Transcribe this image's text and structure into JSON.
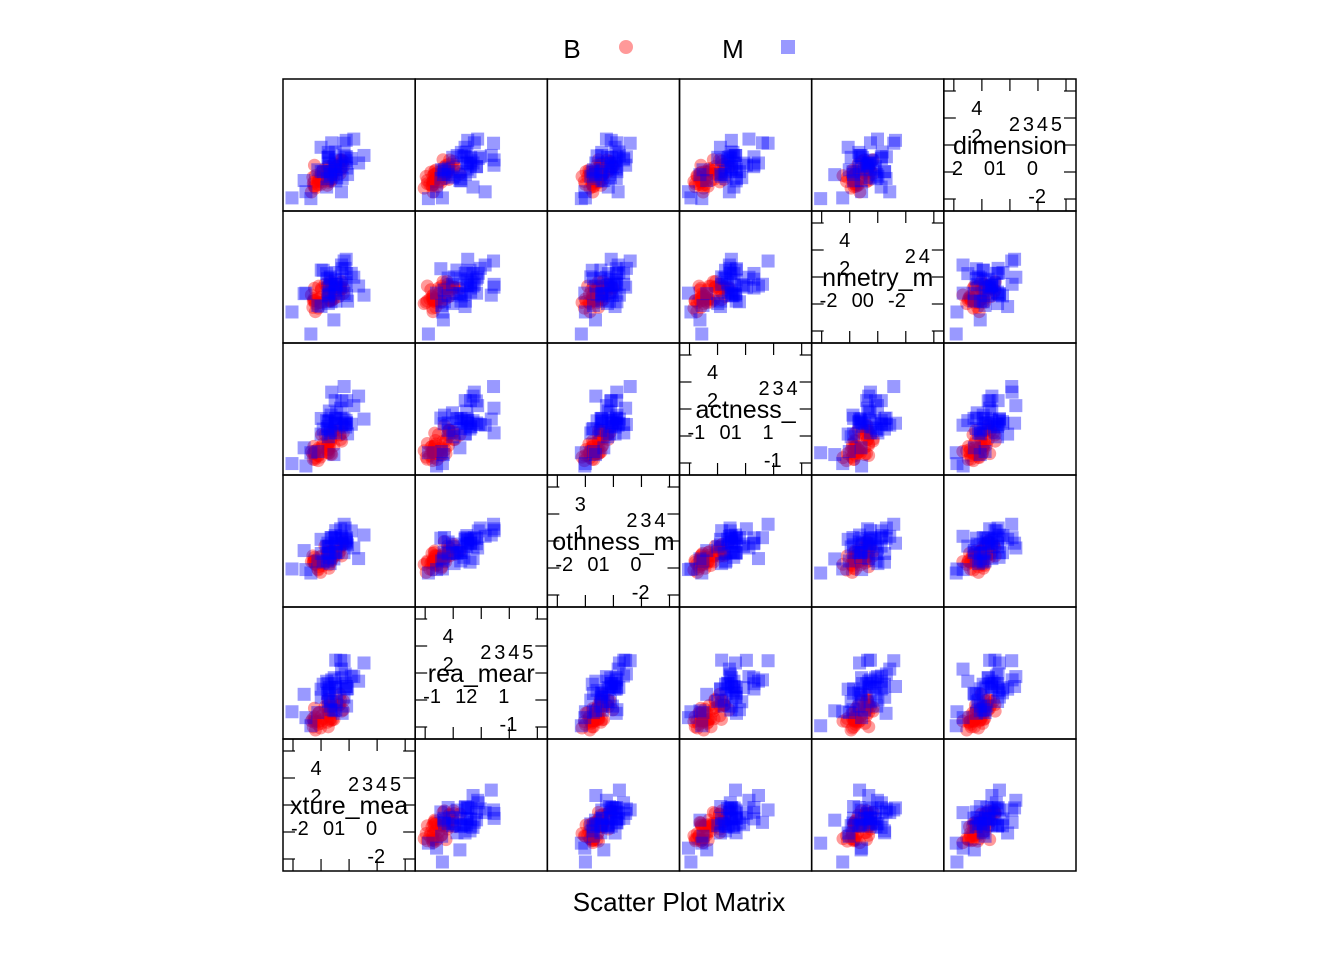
{
  "chart_data": {
    "type": "scatter",
    "title": "",
    "xlabel": "Scatter Plot Matrix",
    "ylabel": "",
    "legend": {
      "placement": "top",
      "entries": [
        {
          "label": "B",
          "marker": "circle",
          "color": "#ff0000"
        },
        {
          "label": "M",
          "marker": "square",
          "color": "#0000ff"
        }
      ]
    },
    "variables": [
      {
        "name": "texture_mean",
        "shown": "xture_mea",
        "top_ticks": [
          "4",
          "2",
          "2",
          "3",
          "4",
          "5"
        ],
        "bottom_ticks": [
          "-2",
          "0",
          "1",
          "0",
          "-2"
        ],
        "range": [
          -2.5,
          5.2
        ]
      },
      {
        "name": "area_mean",
        "shown": "rea_mear",
        "top_ticks": [
          "4",
          "2",
          "2",
          "3",
          "4",
          "5"
        ],
        "bottom_ticks": [
          "-1",
          "1",
          "2",
          "1",
          "-1"
        ],
        "range": [
          -1.5,
          5.5
        ]
      },
      {
        "name": "smoothness_mean",
        "shown": "othness_m",
        "top_ticks": [
          "3",
          "1",
          "2",
          "3",
          "4"
        ],
        "bottom_ticks": [
          "-2",
          "0",
          "1",
          "0",
          "-2"
        ],
        "range": [
          -3.2,
          4.8
        ]
      },
      {
        "name": "compactness_mean",
        "shown": "actness_",
        "top_ticks": [
          "4",
          "2",
          "2",
          "3",
          "4"
        ],
        "bottom_ticks": [
          "-1",
          "0",
          "1",
          "1",
          "-1"
        ],
        "range": [
          -1.6,
          4.6
        ]
      },
      {
        "name": "symmetry_mean",
        "shown": "nmetry_m",
        "top_ticks": [
          "4",
          "2",
          "2",
          "4"
        ],
        "bottom_ticks": [
          "-2",
          "0",
          "0",
          "-2"
        ],
        "range": [
          -2.9,
          4.9
        ]
      },
      {
        "name": "fractal_dimension_mean",
        "shown": "dimension",
        "top_ticks": [
          "4",
          "2",
          "2",
          "3",
          "4",
          "5"
        ],
        "bottom_ticks": [
          "2",
          "0",
          "1",
          "0",
          "-2"
        ],
        "range": [
          -1.9,
          5.0
        ]
      }
    ],
    "groups": [
      {
        "name": "B",
        "n": 45,
        "color": "#ff0000",
        "opacity": 0.4,
        "marker": "circle",
        "center": [
          -0.2,
          -0.6,
          -0.4,
          -0.55,
          -0.3,
          -0.2
        ],
        "spread": 0.55
      },
      {
        "name": "M",
        "n": 45,
        "color": "#0000ff",
        "opacity": 0.4,
        "marker": "square",
        "center": [
          0.4,
          1.0,
          0.5,
          0.9,
          0.4,
          0.2
        ],
        "spread": 0.9
      }
    ],
    "correlation": 0.55
  }
}
